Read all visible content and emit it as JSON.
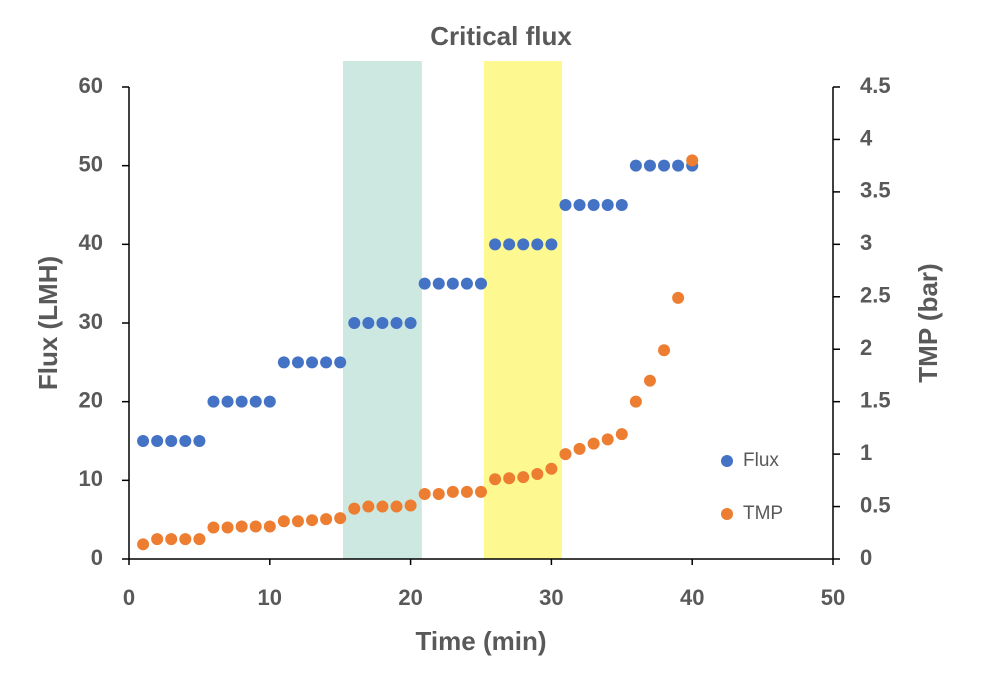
{
  "chart_data": {
    "type": "scatter",
    "title": "Critical flux",
    "x_label": "Time (min)",
    "y_label": "Flux (LMH)",
    "y2_label": "TMP (bar)",
    "x": [
      1,
      2,
      3,
      4,
      5,
      6,
      7,
      8,
      9,
      10,
      11,
      12,
      13,
      14,
      15,
      16,
      17,
      18,
      19,
      20,
      21,
      22,
      23,
      24,
      25,
      26,
      27,
      28,
      29,
      30,
      31,
      32,
      33,
      34,
      35,
      36,
      37,
      38,
      39,
      40
    ],
    "series": [
      {
        "name": "Flux",
        "color": "#4472c4",
        "axis": "y",
        "values": [
          15,
          15,
          15,
          15,
          15,
          20,
          20,
          20,
          20,
          20,
          25,
          25,
          25,
          25,
          25,
          30,
          30,
          30,
          30,
          30,
          35,
          35,
          35,
          35,
          35,
          40,
          40,
          40,
          40,
          40,
          45,
          45,
          45,
          45,
          45,
          50,
          50,
          50,
          50,
          50
        ]
      },
      {
        "name": "TMP",
        "color": "#ed7d31",
        "axis": "y2",
        "values": [
          0.14,
          0.19,
          0.19,
          0.19,
          0.19,
          0.3,
          0.3,
          0.31,
          0.31,
          0.31,
          0.36,
          0.36,
          0.37,
          0.38,
          0.39,
          0.48,
          0.5,
          0.5,
          0.5,
          0.51,
          0.62,
          0.62,
          0.64,
          0.64,
          0.64,
          0.76,
          0.77,
          0.78,
          0.81,
          0.86,
          1.0,
          1.05,
          1.1,
          1.14,
          1.19,
          1.5,
          1.7,
          1.99,
          2.49,
          3.8
        ]
      }
    ],
    "bands": [
      {
        "x0": 15.2,
        "x1": 20.8,
        "color": "#cce8e0"
      },
      {
        "x0": 25.2,
        "x1": 30.75,
        "color": "#fdf990"
      }
    ],
    "xlim": [
      0,
      50
    ],
    "xticks": [
      0,
      10,
      20,
      30,
      40,
      50
    ],
    "ylim": [
      0,
      60
    ],
    "yticks": [
      0,
      10,
      20,
      30,
      40,
      50,
      60
    ],
    "y2lim": [
      0,
      4.5
    ],
    "y2ticks": [
      0,
      0.5,
      1,
      1.5,
      2,
      2.5,
      3,
      3.5,
      4,
      4.5
    ],
    "grid": false,
    "legend": "lower right"
  }
}
